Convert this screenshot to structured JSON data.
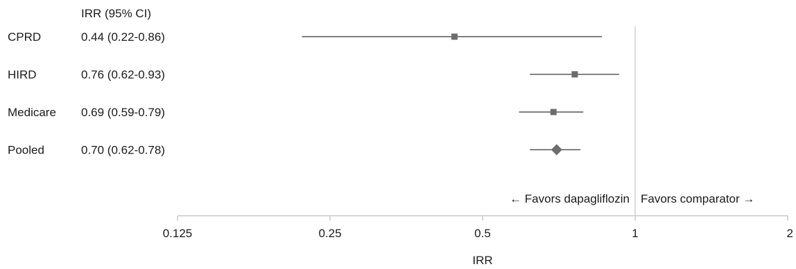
{
  "chart_data": {
    "type": "forest",
    "column_header": "IRR (95% CI)",
    "rows": [
      {
        "label": "CPRD",
        "estimate_text": "0.44 (0.22-0.86)",
        "irr": 0.44,
        "ci_low": 0.22,
        "ci_high": 0.86,
        "marker": "square"
      },
      {
        "label": "HIRD",
        "estimate_text": "0.76 (0.62-0.93)",
        "irr": 0.76,
        "ci_low": 0.62,
        "ci_high": 0.93,
        "marker": "square"
      },
      {
        "label": "Medicare",
        "estimate_text": "0.69 (0.59-0.79)",
        "irr": 0.69,
        "ci_low": 0.59,
        "ci_high": 0.79,
        "marker": "square"
      },
      {
        "label": "Pooled",
        "estimate_text": "0.70 (0.62-0.78)",
        "irr": 0.7,
        "ci_low": 0.62,
        "ci_high": 0.78,
        "marker": "diamond"
      }
    ],
    "x_axis": {
      "label": "IRR",
      "scale": "log2",
      "ticks": [
        0.125,
        0.25,
        0.5,
        1,
        2
      ],
      "tick_labels": [
        "0.125",
        "0.25",
        "0.5",
        "1",
        "2"
      ],
      "range": [
        0.125,
        2
      ]
    },
    "reference_line": 1,
    "annotations": {
      "left": "← Favors dapagliflozin",
      "right": "Favors comparator →"
    },
    "colors": {
      "marker": "#6d6d6d",
      "ci_line": "#555555",
      "reference_line": "#c8c8c8",
      "axis": "#bfbfbf"
    }
  }
}
